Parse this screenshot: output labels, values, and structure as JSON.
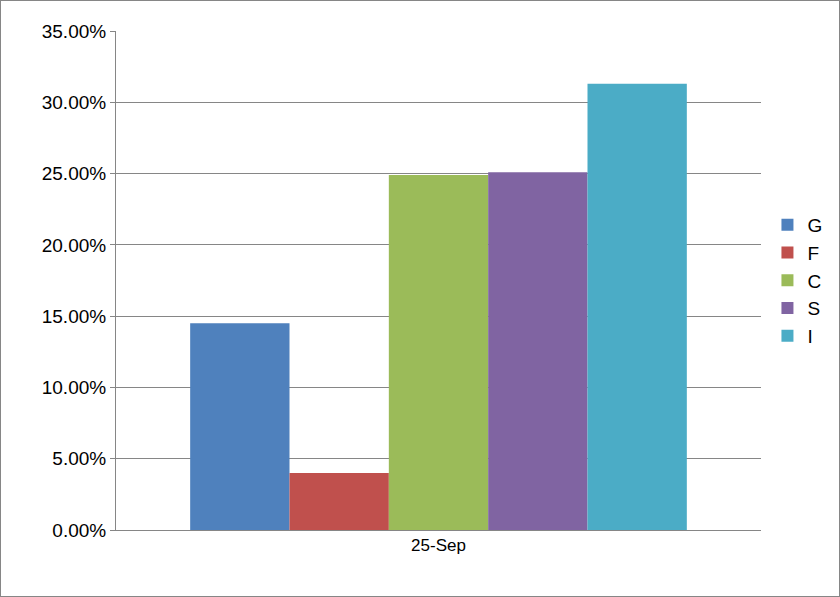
{
  "chart_data": {
    "type": "bar",
    "categories": [
      "25-Sep"
    ],
    "series": [
      {
        "name": "G",
        "color": "#4f81bd",
        "values": [
          14.5
        ]
      },
      {
        "name": "F",
        "color": "#c0504d",
        "values": [
          4.0
        ]
      },
      {
        "name": "C",
        "color": "#9bbb59",
        "values": [
          24.9
        ]
      },
      {
        "name": "S",
        "color": "#8064a2",
        "values": [
          25.1
        ]
      },
      {
        "name": "I",
        "color": "#4bacc6",
        "values": [
          31.3
        ]
      }
    ],
    "ylim": [
      0,
      35
    ],
    "yticks": [
      {
        "value": 0,
        "label": "0.00%"
      },
      {
        "value": 5,
        "label": "5.00%"
      },
      {
        "value": 10,
        "label": "10.00%"
      },
      {
        "value": 15,
        "label": "15.00%"
      },
      {
        "value": 20,
        "label": "20.00%"
      },
      {
        "value": 25,
        "label": "25.00%"
      },
      {
        "value": 30,
        "label": "30.00%"
      },
      {
        "value": 35,
        "label": "35.00%"
      }
    ],
    "grid": true,
    "legend": "right"
  }
}
